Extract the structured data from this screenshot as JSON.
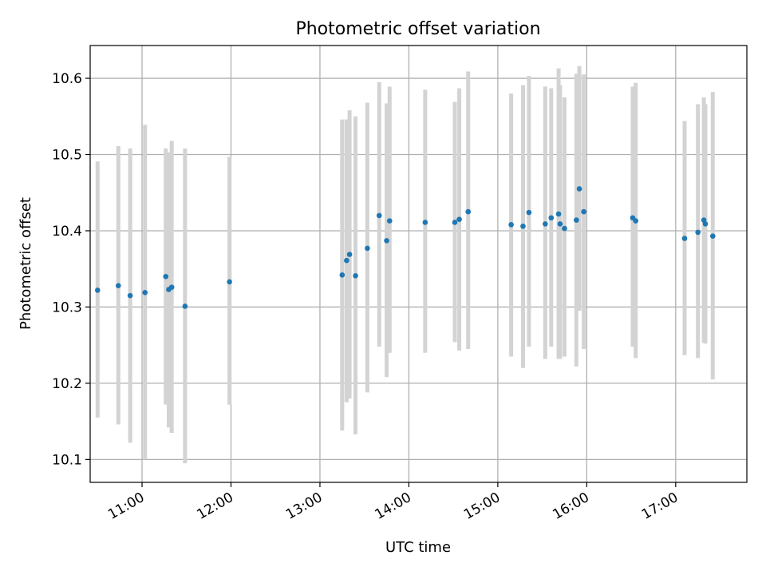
{
  "chart_data": {
    "type": "scatter",
    "title": "Photometric offset variation",
    "xlabel": "UTC time",
    "ylabel": "Photometric offset",
    "xlim": [
      "10:25",
      "17:48"
    ],
    "ylim": [
      10.07,
      10.643
    ],
    "grid": true,
    "x_ticks": [
      "11:00",
      "12:00",
      "13:00",
      "14:00",
      "15:00",
      "16:00",
      "17:00"
    ],
    "y_ticks": [
      10.1,
      10.2,
      10.3,
      10.4,
      10.5,
      10.6
    ],
    "y_tick_labels": [
      "10.1",
      "10.2",
      "10.3",
      "10.4",
      "10.5",
      "10.6"
    ],
    "colors": {
      "points": "#1f77b4",
      "errorbars": "#d3d3d3",
      "grid": "#b0b0b0"
    },
    "points": [
      {
        "time": "10:30",
        "y": 10.322,
        "lo": 10.155,
        "hi": 10.491
      },
      {
        "time": "10:44",
        "y": 10.328,
        "lo": 10.146,
        "hi": 10.511
      },
      {
        "time": "10:52",
        "y": 10.315,
        "lo": 10.122,
        "hi": 10.508
      },
      {
        "time": "11:02",
        "y": 10.319,
        "lo": 10.1,
        "hi": 10.539
      },
      {
        "time": "11:16",
        "y": 10.34,
        "lo": 10.172,
        "hi": 10.508
      },
      {
        "time": "11:18",
        "y": 10.323,
        "lo": 10.142,
        "hi": 10.503
      },
      {
        "time": "11:20",
        "y": 10.326,
        "lo": 10.135,
        "hi": 10.518
      },
      {
        "time": "11:29",
        "y": 10.301,
        "lo": 10.095,
        "hi": 10.508
      },
      {
        "time": "11:59",
        "y": 10.333,
        "lo": 10.172,
        "hi": 10.497
      },
      {
        "time": "13:15",
        "y": 10.342,
        "lo": 10.138,
        "hi": 10.546
      },
      {
        "time": "13:18",
        "y": 10.361,
        "lo": 10.175,
        "hi": 10.546
      },
      {
        "time": "13:20",
        "y": 10.369,
        "lo": 10.18,
        "hi": 10.558
      },
      {
        "time": "13:24",
        "y": 10.341,
        "lo": 10.133,
        "hi": 10.55
      },
      {
        "time": "13:32",
        "y": 10.377,
        "lo": 10.188,
        "hi": 10.568
      },
      {
        "time": "13:40",
        "y": 10.42,
        "lo": 10.248,
        "hi": 10.595
      },
      {
        "time": "13:45",
        "y": 10.387,
        "lo": 10.208,
        "hi": 10.567
      },
      {
        "time": "13:47",
        "y": 10.413,
        "lo": 10.24,
        "hi": 10.589
      },
      {
        "time": "14:11",
        "y": 10.411,
        "lo": 10.24,
        "hi": 10.585
      },
      {
        "time": "14:31",
        "y": 10.411,
        "lo": 10.254,
        "hi": 10.569
      },
      {
        "time": "14:34",
        "y": 10.415,
        "lo": 10.243,
        "hi": 10.587
      },
      {
        "time": "14:40",
        "y": 10.425,
        "lo": 10.245,
        "hi": 10.609
      },
      {
        "time": "15:09",
        "y": 10.408,
        "lo": 10.235,
        "hi": 10.58
      },
      {
        "time": "15:17",
        "y": 10.406,
        "lo": 10.22,
        "hi": 10.591
      },
      {
        "time": "15:21",
        "y": 10.424,
        "lo": 10.248,
        "hi": 10.603
      },
      {
        "time": "15:32",
        "y": 10.409,
        "lo": 10.232,
        "hi": 10.589
      },
      {
        "time": "15:36",
        "y": 10.417,
        "lo": 10.248,
        "hi": 10.587
      },
      {
        "time": "15:41",
        "y": 10.422,
        "lo": 10.232,
        "hi": 10.613
      },
      {
        "time": "15:42",
        "y": 10.409,
        "lo": 10.232,
        "hi": 10.591
      },
      {
        "time": "15:45",
        "y": 10.403,
        "lo": 10.235,
        "hi": 10.575
      },
      {
        "time": "15:53",
        "y": 10.414,
        "lo": 10.222,
        "hi": 10.606
      },
      {
        "time": "15:55",
        "y": 10.455,
        "lo": 10.295,
        "hi": 10.616
      },
      {
        "time": "15:58",
        "y": 10.425,
        "lo": 10.245,
        "hi": 10.605
      },
      {
        "time": "16:31",
        "y": 10.417,
        "lo": 10.248,
        "hi": 10.589
      },
      {
        "time": "16:33",
        "y": 10.413,
        "lo": 10.233,
        "hi": 10.594
      },
      {
        "time": "17:06",
        "y": 10.39,
        "lo": 10.237,
        "hi": 10.544
      },
      {
        "time": "17:15",
        "y": 10.398,
        "lo": 10.233,
        "hi": 10.566
      },
      {
        "time": "17:19",
        "y": 10.414,
        "lo": 10.253,
        "hi": 10.575
      },
      {
        "time": "17:20",
        "y": 10.409,
        "lo": 10.252,
        "hi": 10.566
      },
      {
        "time": "17:25",
        "y": 10.393,
        "lo": 10.205,
        "hi": 10.582
      }
    ]
  }
}
